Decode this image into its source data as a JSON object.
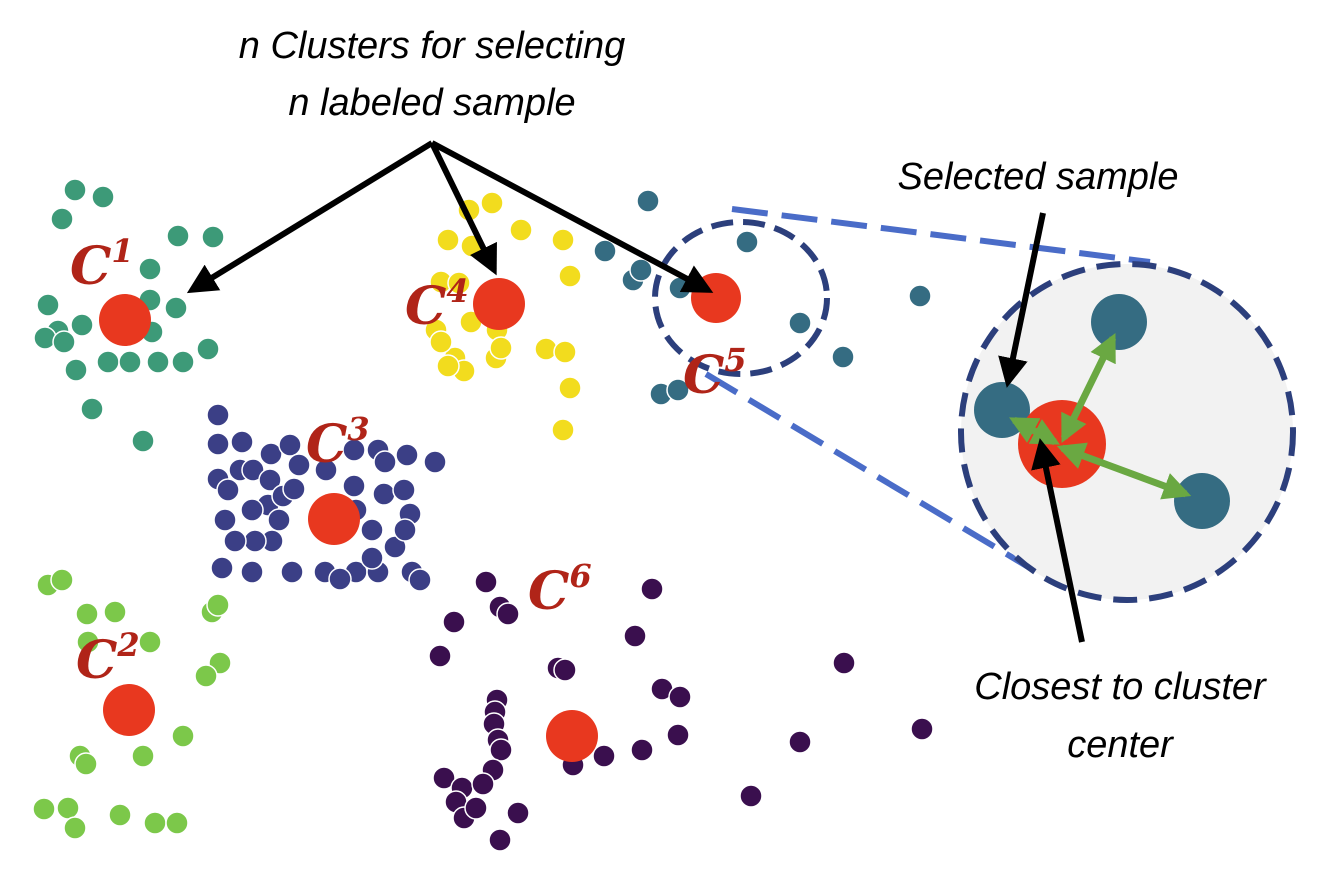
{
  "annotations": {
    "top_line1": "n Clusters for selecting",
    "top_line2": "n labeled sample",
    "selected": "Selected sample",
    "closest_line1": "Closest to cluster",
    "closest_line2": "center"
  },
  "centroids": [
    {
      "id": "C1",
      "letter": "C",
      "index": "1",
      "color": "#e8381f"
    },
    {
      "id": "C2",
      "letter": "C",
      "index": "2",
      "color": "#e8381f"
    },
    {
      "id": "C3",
      "letter": "C",
      "index": "3",
      "color": "#e8381f"
    },
    {
      "id": "C4",
      "letter": "C",
      "index": "4",
      "color": "#e8381f"
    },
    {
      "id": "C5",
      "letter": "C",
      "index": "5",
      "color": "#e8381f"
    },
    {
      "id": "C6",
      "letter": "C",
      "index": "6",
      "color": "#e8381f"
    }
  ],
  "cluster_colors": {
    "C1": "#3d9a78",
    "C2": "#7cc84a",
    "C3": "#3b3f86",
    "C4": "#f2dc1e",
    "C5": "#356c82",
    "C6": "#3a0f4e"
  },
  "colors": {
    "centroid": "#e8381f",
    "label": "#b02418",
    "zoom_dash": "#2c3f7c",
    "connector_dash": "#4a6cc8",
    "distance_arrow": "#6aa842",
    "zoom_fill": "#f2f2f2"
  }
}
